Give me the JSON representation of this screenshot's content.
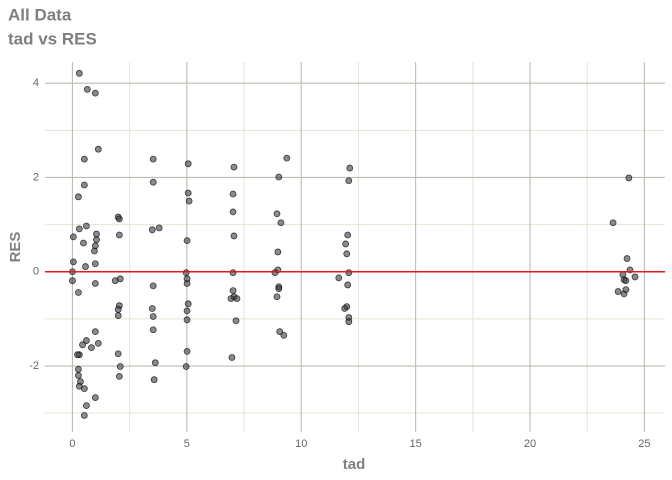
{
  "chart_data": {
    "type": "scatter",
    "title": "All Data",
    "subtitle": "tad vs RES",
    "x_label": "tad",
    "y_label": "RES",
    "color": "#3c3c3c",
    "x": [
      0.3,
      0.65,
      1.0,
      1.13,
      0.52,
      0.52,
      0.26,
      0.61,
      0.3,
      0.04,
      1.05,
      1.05,
      1.0,
      0.96,
      0.48,
      1.0,
      0.57,
      0.04,
      0,
      0,
      0.26,
      1.0,
      1.0,
      0.61,
      0.44,
      0.83,
      1.13,
      0.3,
      0.22,
      0.26,
      0.26,
      0.35,
      0.3,
      0.52,
      1.0,
      0.61,
      0.52,
      2.0,
      2.05,
      2.05,
      2.09,
      1.87,
      2.05,
      2.0,
      2.0,
      2.0,
      2.09,
      2.05,
      3.53,
      3.53,
      3.49,
      3.79,
      3.53,
      3.49,
      3.53,
      3.53,
      3.62,
      3.57,
      5.06,
      5.06,
      5.1,
      5.01,
      4.97,
      5.01,
      5.01,
      5.06,
      5.01,
      5.01,
      5.01,
      4.97,
      7.06,
      7.02,
      7.02,
      7.06,
      7.02,
      7.02,
      7.06,
      7.19,
      6.93,
      7.15,
      6.97,
      9.37,
      9.02,
      8.94,
      9.11,
      8.98,
      8.98,
      8.85,
      9.02,
      9.02,
      8.94,
      9.06,
      9.24,
      12.12,
      12.08,
      12.03,
      11.94,
      11.99,
      12.08,
      11.64,
      12.03,
      11.99,
      11.9,
      12.08,
      12.08,
      23.63,
      24.32,
      24.24,
      24.37,
      24.06,
      24.11,
      24.19,
      24.59,
      23.85,
      24.11,
      24.19
    ],
    "values": [
      4.21,
      3.87,
      3.79,
      2.6,
      2.39,
      1.84,
      1.59,
      0.97,
      0.91,
      0.74,
      0.8,
      0.68,
      0.55,
      0.44,
      0.61,
      0.17,
      0.11,
      0.21,
      0,
      -0.19,
      -0.44,
      -0.25,
      -1.27,
      -1.46,
      -1.55,
      -1.61,
      -1.52,
      -1.76,
      -1.76,
      -2.07,
      -2.2,
      -2.33,
      -2.43,
      -2.48,
      -2.67,
      -2.84,
      -3.05,
      1.16,
      1.12,
      0.78,
      -0.15,
      -0.19,
      -0.72,
      -0.8,
      -0.93,
      -1.74,
      -2.01,
      -2.22,
      2.39,
      1.9,
      0.89,
      0.93,
      -0.3,
      -0.78,
      -0.95,
      -1.23,
      -1.93,
      -2.29,
      2.29,
      1.67,
      1.5,
      0.66,
      -0.02,
      -0.15,
      -0.25,
      -0.68,
      -0.83,
      -1.02,
      -1.69,
      -2.01,
      2.22,
      1.65,
      1.27,
      0.76,
      -0.02,
      -0.4,
      -0.53,
      -0.57,
      -0.57,
      -1.04,
      -1.82,
      2.41,
      2.01,
      1.23,
      1.04,
      0.42,
      0.04,
      -0.02,
      -0.32,
      -0.36,
      -0.53,
      -1.27,
      -1.35,
      2.2,
      1.93,
      0.78,
      0.59,
      0.38,
      -0.02,
      -0.13,
      -0.28,
      -0.74,
      -0.78,
      -0.97,
      -1.06,
      1.04,
      1.99,
      0.28,
      0.04,
      -0.06,
      -0.17,
      -0.19,
      -0.11,
      -0.42,
      -0.47,
      -0.38
    ],
    "xlim": [
      -1.2,
      25.9
    ],
    "ylim": [
      -3.4,
      4.45
    ],
    "xticks": [
      0,
      5,
      10,
      15,
      20,
      25
    ],
    "yticks": [
      -2,
      0,
      2,
      4
    ],
    "xminor": [
      2.5,
      7.5,
      12.5,
      17.5,
      22.5
    ],
    "yminor": [
      -3,
      -1,
      1,
      3
    ],
    "grid": true,
    "hline": {
      "value": 0,
      "color": "#e31a1c"
    }
  }
}
